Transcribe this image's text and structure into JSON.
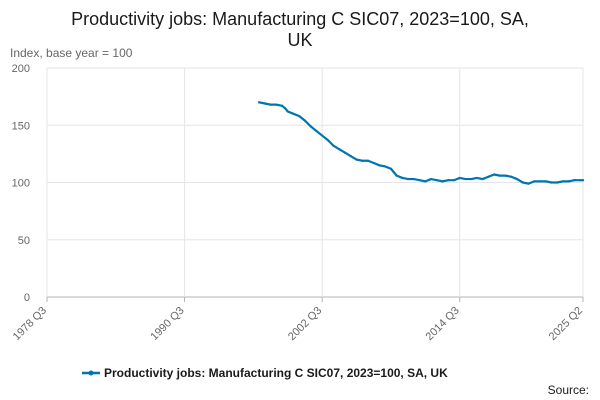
{
  "chart_data": {
    "type": "line",
    "title_line1": "Productivity jobs: Manufacturing C SIC07, 2023=100, SA,",
    "title_line2": "UK",
    "ylabel": "Index, base year = 100",
    "ylim": [
      0,
      200
    ],
    "yticks": [
      0,
      50,
      100,
      150,
      200
    ],
    "xlim": [
      1978.5,
      2025.25
    ],
    "xticks": [
      {
        "label": "1978 Q3",
        "x": 1978.5
      },
      {
        "label": "1990 Q3",
        "x": 1990.5
      },
      {
        "label": "2002 Q3",
        "x": 2002.5
      },
      {
        "label": "2014 Q3",
        "x": 2014.5
      },
      {
        "label": "2025 Q2",
        "x": 2025.25
      }
    ],
    "grid": true,
    "legend_position": "bottom",
    "source_label": "Source:",
    "series": [
      {
        "name": "Productivity jobs: Manufacturing C SIC07, 2023=100, SA, UK",
        "color": "#0075b0",
        "x": [
          1997.0,
          1997.5,
          1998.0,
          1998.5,
          1999.0,
          1999.25,
          1999.5,
          2000.0,
          2000.5,
          2001.0,
          2001.5,
          2002.0,
          2002.5,
          2003.0,
          2003.5,
          2004.0,
          2004.5,
          2005.0,
          2005.5,
          2006.0,
          2006.5,
          2007.0,
          2007.5,
          2008.0,
          2008.5,
          2009.0,
          2009.5,
          2010.0,
          2010.5,
          2011.0,
          2011.5,
          2012.0,
          2012.5,
          2013.0,
          2013.5,
          2014.0,
          2014.5,
          2015.0,
          2015.5,
          2016.0,
          2016.5,
          2017.0,
          2017.5,
          2018.0,
          2018.5,
          2019.0,
          2019.5,
          2020.0,
          2020.5,
          2021.0,
          2021.5,
          2022.0,
          2022.5,
          2023.0,
          2023.5,
          2024.0,
          2024.5,
          2025.0,
          2025.25
        ],
        "values": [
          170,
          169,
          168,
          168,
          167,
          165,
          162,
          160,
          158,
          154,
          149,
          145,
          141,
          137,
          132,
          129,
          126,
          123,
          120,
          119,
          119,
          117,
          115,
          114,
          112,
          106,
          104,
          103,
          103,
          102,
          101,
          103,
          102,
          101,
          102,
          102,
          104,
          103,
          103,
          104,
          103,
          105,
          107,
          106,
          106,
          105,
          103,
          100,
          99,
          101,
          101,
          101,
          100,
          100,
          101,
          101,
          102,
          102,
          102
        ]
      }
    ]
  }
}
